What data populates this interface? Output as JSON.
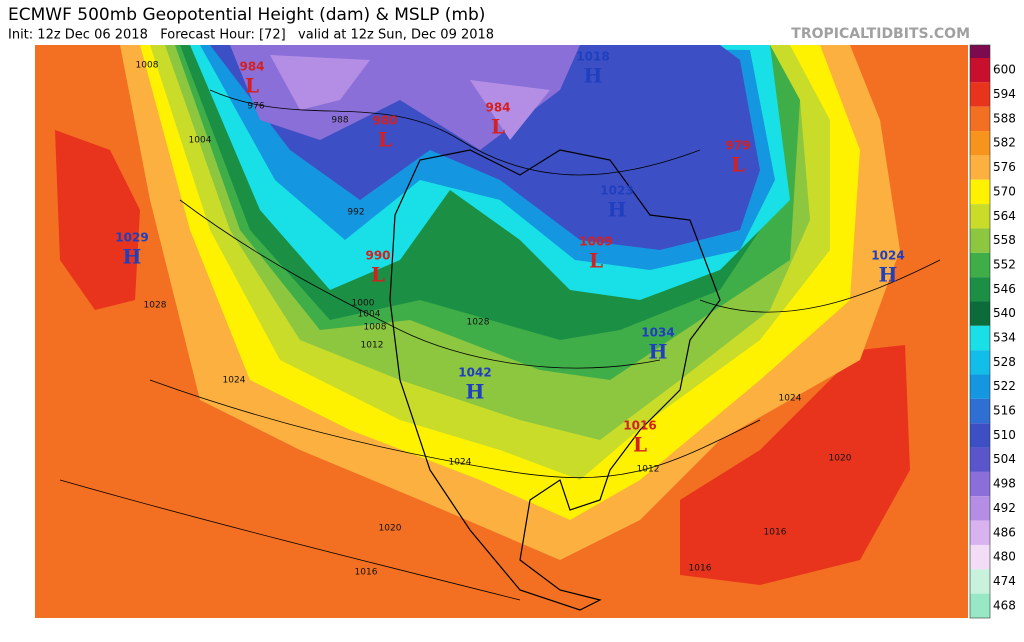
{
  "header": {
    "title": "ECMWF 500mb Geopotential Height (dam) & MSLP (mb)",
    "subtitle": "Init: 12z Dec 06 2018   Forecast Hour: [72]   valid at 12z Sun, Dec 09 2018",
    "site": "TROPICALTIDBITS.COM"
  },
  "colorbar": {
    "top_color": "#7b0a4f",
    "levels": [
      "600",
      "594",
      "588",
      "582",
      "576",
      "570",
      "564",
      "558",
      "552",
      "546",
      "540",
      "534",
      "528",
      "522",
      "516",
      "510",
      "504",
      "498",
      "492",
      "486",
      "480",
      "474",
      "468"
    ],
    "colors": [
      "#c8102e",
      "#e8341c",
      "#f36f21",
      "#f7941d",
      "#fbb040",
      "#fff200",
      "#c9dc2a",
      "#8dc63f",
      "#3fae49",
      "#1b8f44",
      "#0c6b3b",
      "#18e0e6",
      "#12bde8",
      "#1596e0",
      "#2f6fd3",
      "#3d4fc4",
      "#5b55cc",
      "#8a6fd8",
      "#b48ee4",
      "#d9b3ef",
      "#f2dcf6",
      "#c8f2dc",
      "#98e8c6"
    ]
  },
  "centers": [
    {
      "type": "L",
      "value": "984"
    },
    {
      "type": "L",
      "value": "980"
    },
    {
      "type": "L",
      "value": "984"
    },
    {
      "type": "L",
      "value": "979"
    },
    {
      "type": "H",
      "value": "1029"
    },
    {
      "type": "L",
      "value": "990"
    },
    {
      "type": "L",
      "value": "1009"
    },
    {
      "type": "H",
      "value": "1023"
    },
    {
      "type": "H",
      "value": "1024"
    },
    {
      "type": "H",
      "value": "1034"
    },
    {
      "type": "H",
      "value": "1042"
    },
    {
      "type": "L",
      "value": "1016"
    },
    {
      "type": "H",
      "value": "1018"
    }
  ],
  "isobars": [
    "1008",
    "976",
    "1004",
    "988",
    "992",
    "1028",
    "1024",
    "1012",
    "1020",
    "1016",
    "1024",
    "1028",
    "1024",
    "1012",
    "1016",
    "1020",
    "1016",
    "1000",
    "1004",
    "1008"
  ]
}
